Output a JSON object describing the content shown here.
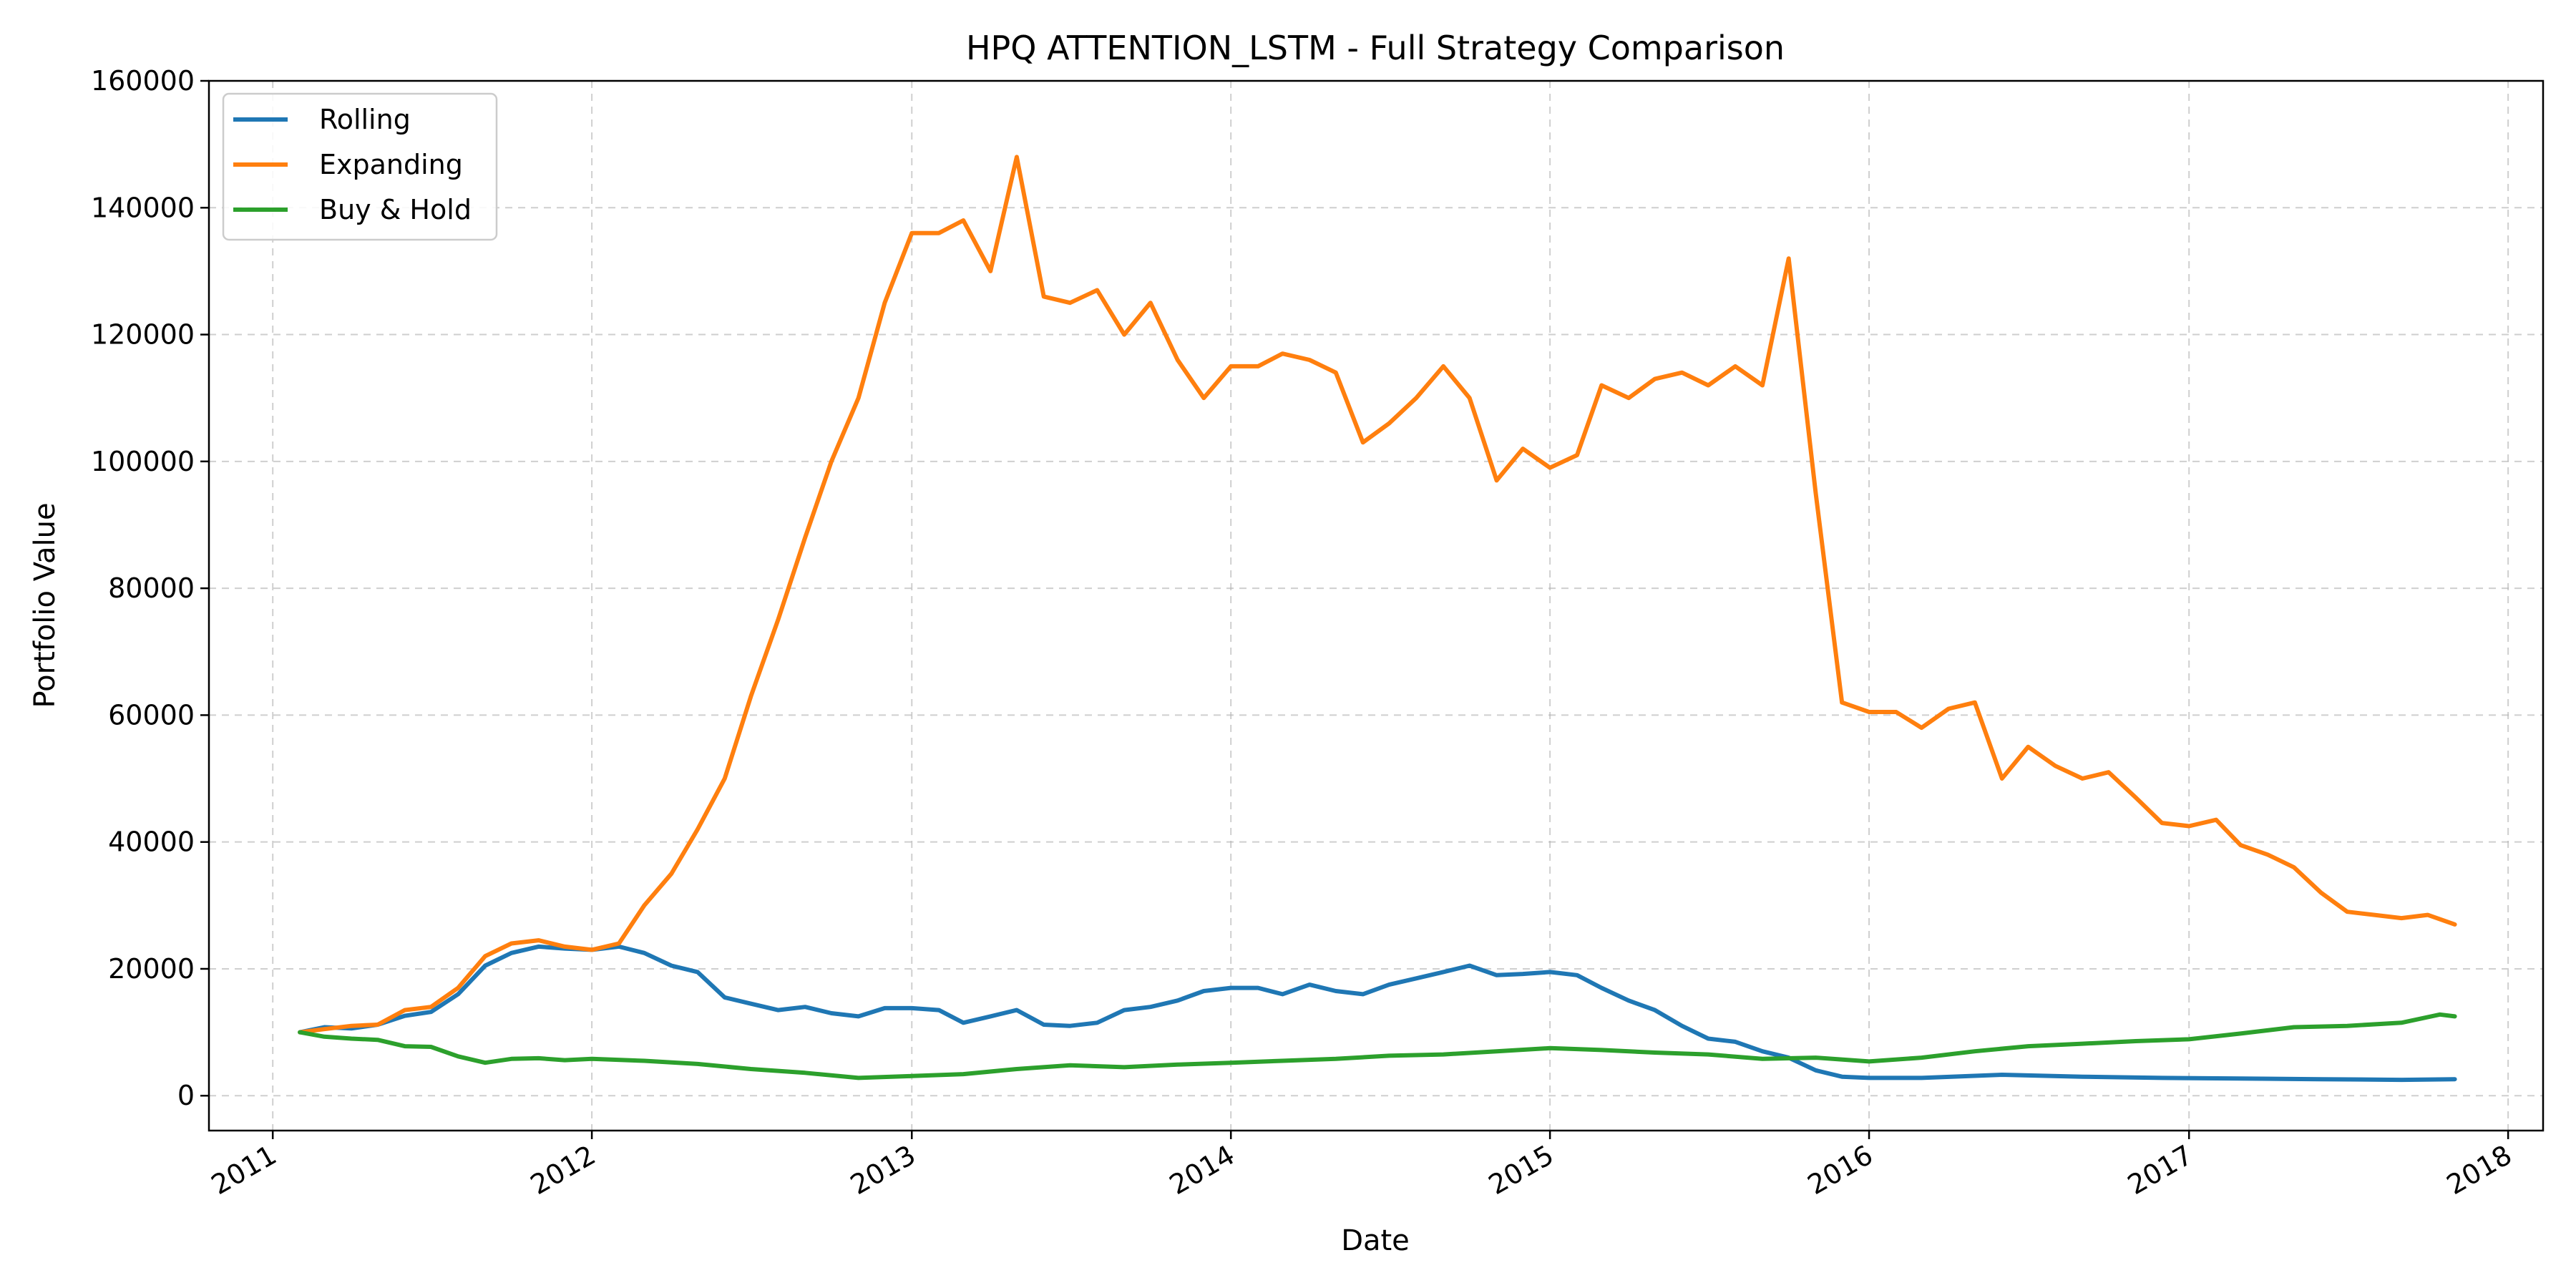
{
  "chart_data": {
    "type": "line",
    "title": "HPQ ATTENTION_LSTM - Full Strategy Comparison",
    "xlabel": "Date",
    "ylabel": "Portfolio Value",
    "xlim": [
      "2010-10-20",
      "2018-02-10"
    ],
    "ylim": [
      -5500,
      160000
    ],
    "x_ticks": [
      "2011-01-01",
      "2012-01-01",
      "2013-01-01",
      "2014-01-01",
      "2015-01-01",
      "2016-01-01",
      "2017-01-01",
      "2018-01-01"
    ],
    "x_tick_labels": [
      "2011",
      "2012",
      "2013",
      "2014",
      "2015",
      "2016",
      "2017",
      "2018"
    ],
    "y_ticks": [
      0,
      20000,
      40000,
      60000,
      80000,
      100000,
      120000,
      140000,
      160000
    ],
    "y_tick_labels": [
      "0",
      "20000",
      "40000",
      "60000",
      "80000",
      "100000",
      "120000",
      "140000",
      "160000"
    ],
    "grid": true,
    "legend_position": "top-left",
    "series": [
      {
        "name": "Rolling",
        "color": "#1f77b4",
        "points": [
          [
            "2011-02-01",
            10000
          ],
          [
            "2011-03-01",
            10800
          ],
          [
            "2011-04-01",
            10600
          ],
          [
            "2011-05-01",
            11200
          ],
          [
            "2011-06-01",
            12600
          ],
          [
            "2011-07-01",
            13200
          ],
          [
            "2011-08-01",
            16000
          ],
          [
            "2011-09-01",
            20500
          ],
          [
            "2011-10-01",
            22500
          ],
          [
            "2011-11-01",
            23500
          ],
          [
            "2011-12-01",
            23200
          ],
          [
            "2012-01-01",
            23000
          ],
          [
            "2012-02-01",
            23500
          ],
          [
            "2012-03-01",
            22500
          ],
          [
            "2012-04-01",
            20500
          ],
          [
            "2012-05-01",
            19500
          ],
          [
            "2012-06-01",
            15500
          ],
          [
            "2012-07-01",
            14500
          ],
          [
            "2012-08-01",
            13500
          ],
          [
            "2012-09-01",
            14000
          ],
          [
            "2012-10-01",
            13000
          ],
          [
            "2012-11-01",
            12500
          ],
          [
            "2012-12-01",
            13800
          ],
          [
            "2013-01-01",
            13800
          ],
          [
            "2013-02-01",
            13500
          ],
          [
            "2013-03-01",
            11500
          ],
          [
            "2013-04-01",
            12500
          ],
          [
            "2013-05-01",
            13500
          ],
          [
            "2013-06-01",
            11200
          ],
          [
            "2013-07-01",
            11000
          ],
          [
            "2013-08-01",
            11500
          ],
          [
            "2013-09-01",
            13500
          ],
          [
            "2013-10-01",
            14000
          ],
          [
            "2013-11-01",
            15000
          ],
          [
            "2013-12-01",
            16500
          ],
          [
            "2014-01-01",
            17000
          ],
          [
            "2014-02-01",
            17000
          ],
          [
            "2014-03-01",
            16000
          ],
          [
            "2014-04-01",
            17500
          ],
          [
            "2014-05-01",
            16500
          ],
          [
            "2014-06-01",
            16000
          ],
          [
            "2014-07-01",
            17500
          ],
          [
            "2014-08-01",
            18500
          ],
          [
            "2014-09-01",
            19500
          ],
          [
            "2014-10-01",
            20500
          ],
          [
            "2014-11-01",
            19000
          ],
          [
            "2014-12-01",
            19200
          ],
          [
            "2015-01-01",
            19500
          ],
          [
            "2015-02-01",
            19000
          ],
          [
            "2015-03-01",
            17000
          ],
          [
            "2015-04-01",
            15000
          ],
          [
            "2015-05-01",
            13500
          ],
          [
            "2015-06-01",
            11000
          ],
          [
            "2015-07-01",
            9000
          ],
          [
            "2015-08-01",
            8500
          ],
          [
            "2015-09-01",
            7000
          ],
          [
            "2015-10-01",
            6000
          ],
          [
            "2015-11-01",
            4000
          ],
          [
            "2015-12-01",
            3000
          ],
          [
            "2016-01-01",
            2800
          ],
          [
            "2016-03-01",
            2800
          ],
          [
            "2016-06-01",
            3300
          ],
          [
            "2016-09-01",
            3000
          ],
          [
            "2016-12-01",
            2800
          ],
          [
            "2017-03-01",
            2700
          ],
          [
            "2017-06-01",
            2600
          ],
          [
            "2017-09-01",
            2500
          ],
          [
            "2017-11-01",
            2600
          ]
        ]
      },
      {
        "name": "Expanding",
        "color": "#ff7f0e",
        "points": [
          [
            "2011-02-01",
            10000
          ],
          [
            "2011-03-01",
            10500
          ],
          [
            "2011-04-01",
            11000
          ],
          [
            "2011-05-01",
            11200
          ],
          [
            "2011-06-01",
            13500
          ],
          [
            "2011-07-01",
            14000
          ],
          [
            "2011-08-01",
            17000
          ],
          [
            "2011-09-01",
            22000
          ],
          [
            "2011-10-01",
            24000
          ],
          [
            "2011-11-01",
            24500
          ],
          [
            "2011-12-01",
            23500
          ],
          [
            "2012-01-01",
            23000
          ],
          [
            "2012-02-01",
            24000
          ],
          [
            "2012-03-01",
            30000
          ],
          [
            "2012-04-01",
            35000
          ],
          [
            "2012-05-01",
            42000
          ],
          [
            "2012-06-01",
            50000
          ],
          [
            "2012-07-01",
            63000
          ],
          [
            "2012-08-01",
            75000
          ],
          [
            "2012-09-01",
            88000
          ],
          [
            "2012-10-01",
            100000
          ],
          [
            "2012-11-01",
            110000
          ],
          [
            "2012-12-01",
            125000
          ],
          [
            "2013-01-01",
            136000
          ],
          [
            "2013-02-01",
            136000
          ],
          [
            "2013-03-01",
            138000
          ],
          [
            "2013-04-01",
            130000
          ],
          [
            "2013-05-01",
            148000
          ],
          [
            "2013-06-01",
            126000
          ],
          [
            "2013-07-01",
            125000
          ],
          [
            "2013-08-01",
            127000
          ],
          [
            "2013-09-01",
            120000
          ],
          [
            "2013-10-01",
            125000
          ],
          [
            "2013-11-01",
            116000
          ],
          [
            "2013-12-01",
            110000
          ],
          [
            "2014-01-01",
            115000
          ],
          [
            "2014-02-01",
            115000
          ],
          [
            "2014-03-01",
            117000
          ],
          [
            "2014-04-01",
            116000
          ],
          [
            "2014-05-01",
            114000
          ],
          [
            "2014-06-01",
            103000
          ],
          [
            "2014-07-01",
            106000
          ],
          [
            "2014-08-01",
            110000
          ],
          [
            "2014-09-01",
            115000
          ],
          [
            "2014-10-01",
            110000
          ],
          [
            "2014-11-01",
            97000
          ],
          [
            "2014-12-01",
            102000
          ],
          [
            "2015-01-01",
            99000
          ],
          [
            "2015-02-01",
            101000
          ],
          [
            "2015-03-01",
            112000
          ],
          [
            "2015-04-01",
            110000
          ],
          [
            "2015-05-01",
            113000
          ],
          [
            "2015-06-01",
            114000
          ],
          [
            "2015-07-01",
            112000
          ],
          [
            "2015-08-01",
            115000
          ],
          [
            "2015-09-01",
            112000
          ],
          [
            "2015-10-01",
            132000
          ],
          [
            "2015-11-01",
            95000
          ],
          [
            "2015-12-01",
            62000
          ],
          [
            "2016-01-01",
            60500
          ],
          [
            "2016-02-01",
            60500
          ],
          [
            "2016-03-01",
            58000
          ],
          [
            "2016-04-01",
            61000
          ],
          [
            "2016-05-01",
            62000
          ],
          [
            "2016-06-01",
            50000
          ],
          [
            "2016-07-01",
            55000
          ],
          [
            "2016-08-01",
            52000
          ],
          [
            "2016-09-01",
            50000
          ],
          [
            "2016-10-01",
            51000
          ],
          [
            "2016-11-01",
            47000
          ],
          [
            "2016-12-01",
            43000
          ],
          [
            "2017-01-01",
            42500
          ],
          [
            "2017-02-01",
            43500
          ],
          [
            "2017-03-01",
            39500
          ],
          [
            "2017-04-01",
            38000
          ],
          [
            "2017-05-01",
            36000
          ],
          [
            "2017-06-01",
            32000
          ],
          [
            "2017-07-01",
            29000
          ],
          [
            "2017-08-01",
            28500
          ],
          [
            "2017-09-01",
            28000
          ],
          [
            "2017-10-01",
            28500
          ],
          [
            "2017-11-01",
            27000
          ]
        ]
      },
      {
        "name": "Buy & Hold",
        "color": "#2ca02c",
        "points": [
          [
            "2011-02-01",
            10000
          ],
          [
            "2011-03-01",
            9300
          ],
          [
            "2011-04-01",
            9000
          ],
          [
            "2011-05-01",
            8800
          ],
          [
            "2011-06-01",
            7800
          ],
          [
            "2011-07-01",
            7700
          ],
          [
            "2011-08-01",
            6200
          ],
          [
            "2011-09-01",
            5200
          ],
          [
            "2011-10-01",
            5800
          ],
          [
            "2011-11-01",
            5900
          ],
          [
            "2011-12-01",
            5600
          ],
          [
            "2012-01-01",
            5800
          ],
          [
            "2012-03-01",
            5500
          ],
          [
            "2012-05-01",
            5000
          ],
          [
            "2012-07-01",
            4200
          ],
          [
            "2012-09-01",
            3600
          ],
          [
            "2012-11-01",
            2800
          ],
          [
            "2013-01-01",
            3100
          ],
          [
            "2013-03-01",
            3400
          ],
          [
            "2013-05-01",
            4200
          ],
          [
            "2013-07-01",
            4800
          ],
          [
            "2013-09-01",
            4500
          ],
          [
            "2013-11-01",
            4900
          ],
          [
            "2014-01-01",
            5200
          ],
          [
            "2014-03-01",
            5500
          ],
          [
            "2014-05-01",
            5800
          ],
          [
            "2014-07-01",
            6300
          ],
          [
            "2014-09-01",
            6500
          ],
          [
            "2014-11-01",
            7000
          ],
          [
            "2015-01-01",
            7500
          ],
          [
            "2015-03-01",
            7200
          ],
          [
            "2015-05-01",
            6800
          ],
          [
            "2015-07-01",
            6500
          ],
          [
            "2015-09-01",
            5800
          ],
          [
            "2015-11-01",
            6000
          ],
          [
            "2016-01-01",
            5400
          ],
          [
            "2016-03-01",
            6000
          ],
          [
            "2016-05-01",
            7000
          ],
          [
            "2016-07-01",
            7800
          ],
          [
            "2016-09-01",
            8200
          ],
          [
            "2016-11-01",
            8600
          ],
          [
            "2017-01-01",
            8900
          ],
          [
            "2017-03-01",
            9800
          ],
          [
            "2017-05-01",
            10800
          ],
          [
            "2017-07-01",
            11000
          ],
          [
            "2017-09-01",
            11500
          ],
          [
            "2017-10-15",
            12800
          ],
          [
            "2017-11-01",
            12500
          ]
        ]
      }
    ]
  }
}
